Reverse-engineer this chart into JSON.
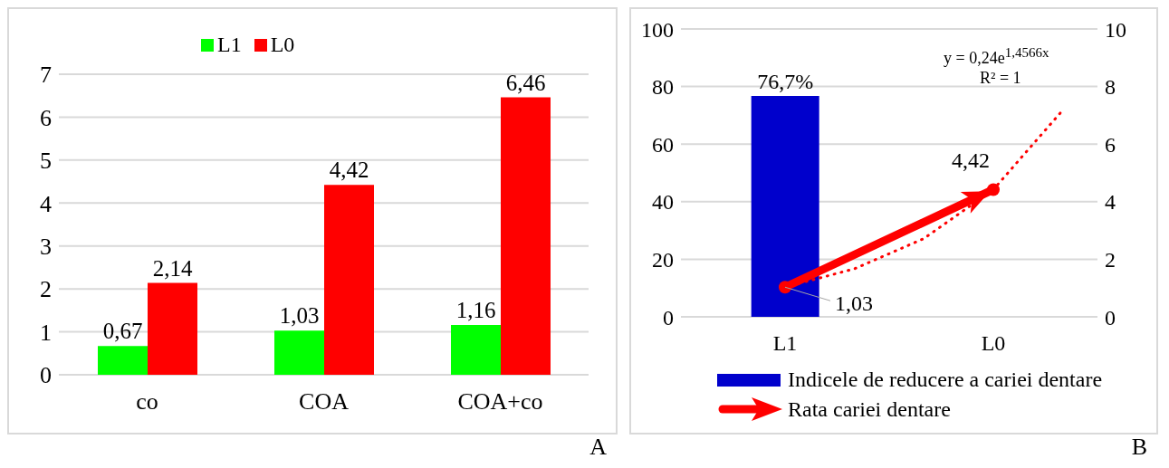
{
  "chart_data": [
    {
      "type": "bar",
      "categories": [
        "co",
        "COA",
        "COA+co"
      ],
      "series": [
        {
          "name": "L1",
          "color": "#00ff00",
          "values": [
            0.67,
            1.03,
            1.16
          ],
          "value_labels": [
            "0,67",
            "1,03",
            "1,16"
          ]
        },
        {
          "name": "L0",
          "color": "#ff0000",
          "values": [
            2.14,
            4.42,
            6.46
          ],
          "value_labels": [
            "2,14",
            "4,42",
            "6,46"
          ]
        }
      ],
      "ylim": [
        0,
        7
      ],
      "yticks": [
        0,
        1,
        2,
        3,
        4,
        5,
        6,
        7
      ],
      "grid": "y",
      "legend": "top",
      "annotations": [
        "A"
      ]
    },
    {
      "type": "bar",
      "categories": [
        null,
        "L1",
        null,
        null,
        "L0",
        null
      ],
      "series": [
        {
          "name": "Indicele de reducere a cariei dentare",
          "color": "#0000cc",
          "values": [
            null,
            76.7,
            null,
            null,
            null,
            null
          ],
          "value_labels": [
            null,
            "76,7%",
            null,
            null,
            null,
            null
          ]
        },
        {
          "name": "Rata cariei dentare",
          "type": "line",
          "axis": "y2",
          "color": "#ff0000",
          "marker": "circle",
          "values": [
            null,
            1.03,
            null,
            null,
            4.42,
            null
          ],
          "value_labels": [
            null,
            "1,03",
            null,
            null,
            "4,42",
            null
          ]
        },
        {
          "type": "line",
          "axis": "y2",
          "color": "#ff0000",
          "marker": "none",
          "line_style": "dotted",
          "values": [
            null,
            1.03,
            1.67,
            2.72,
            4.42,
            7.18
          ]
        }
      ],
      "ylim": [
        0,
        100
      ],
      "yticks": [
        0,
        20,
        40,
        60,
        80,
        100
      ],
      "y2lim": [
        0,
        10
      ],
      "y2ticks": [
        0,
        2,
        4,
        6,
        8,
        10
      ],
      "grid": "y",
      "legend": "bottom",
      "annotations": [
        "y = 0,24e$^{1,4566x}$",
        "R² = 1",
        "B"
      ]
    }
  ]
}
